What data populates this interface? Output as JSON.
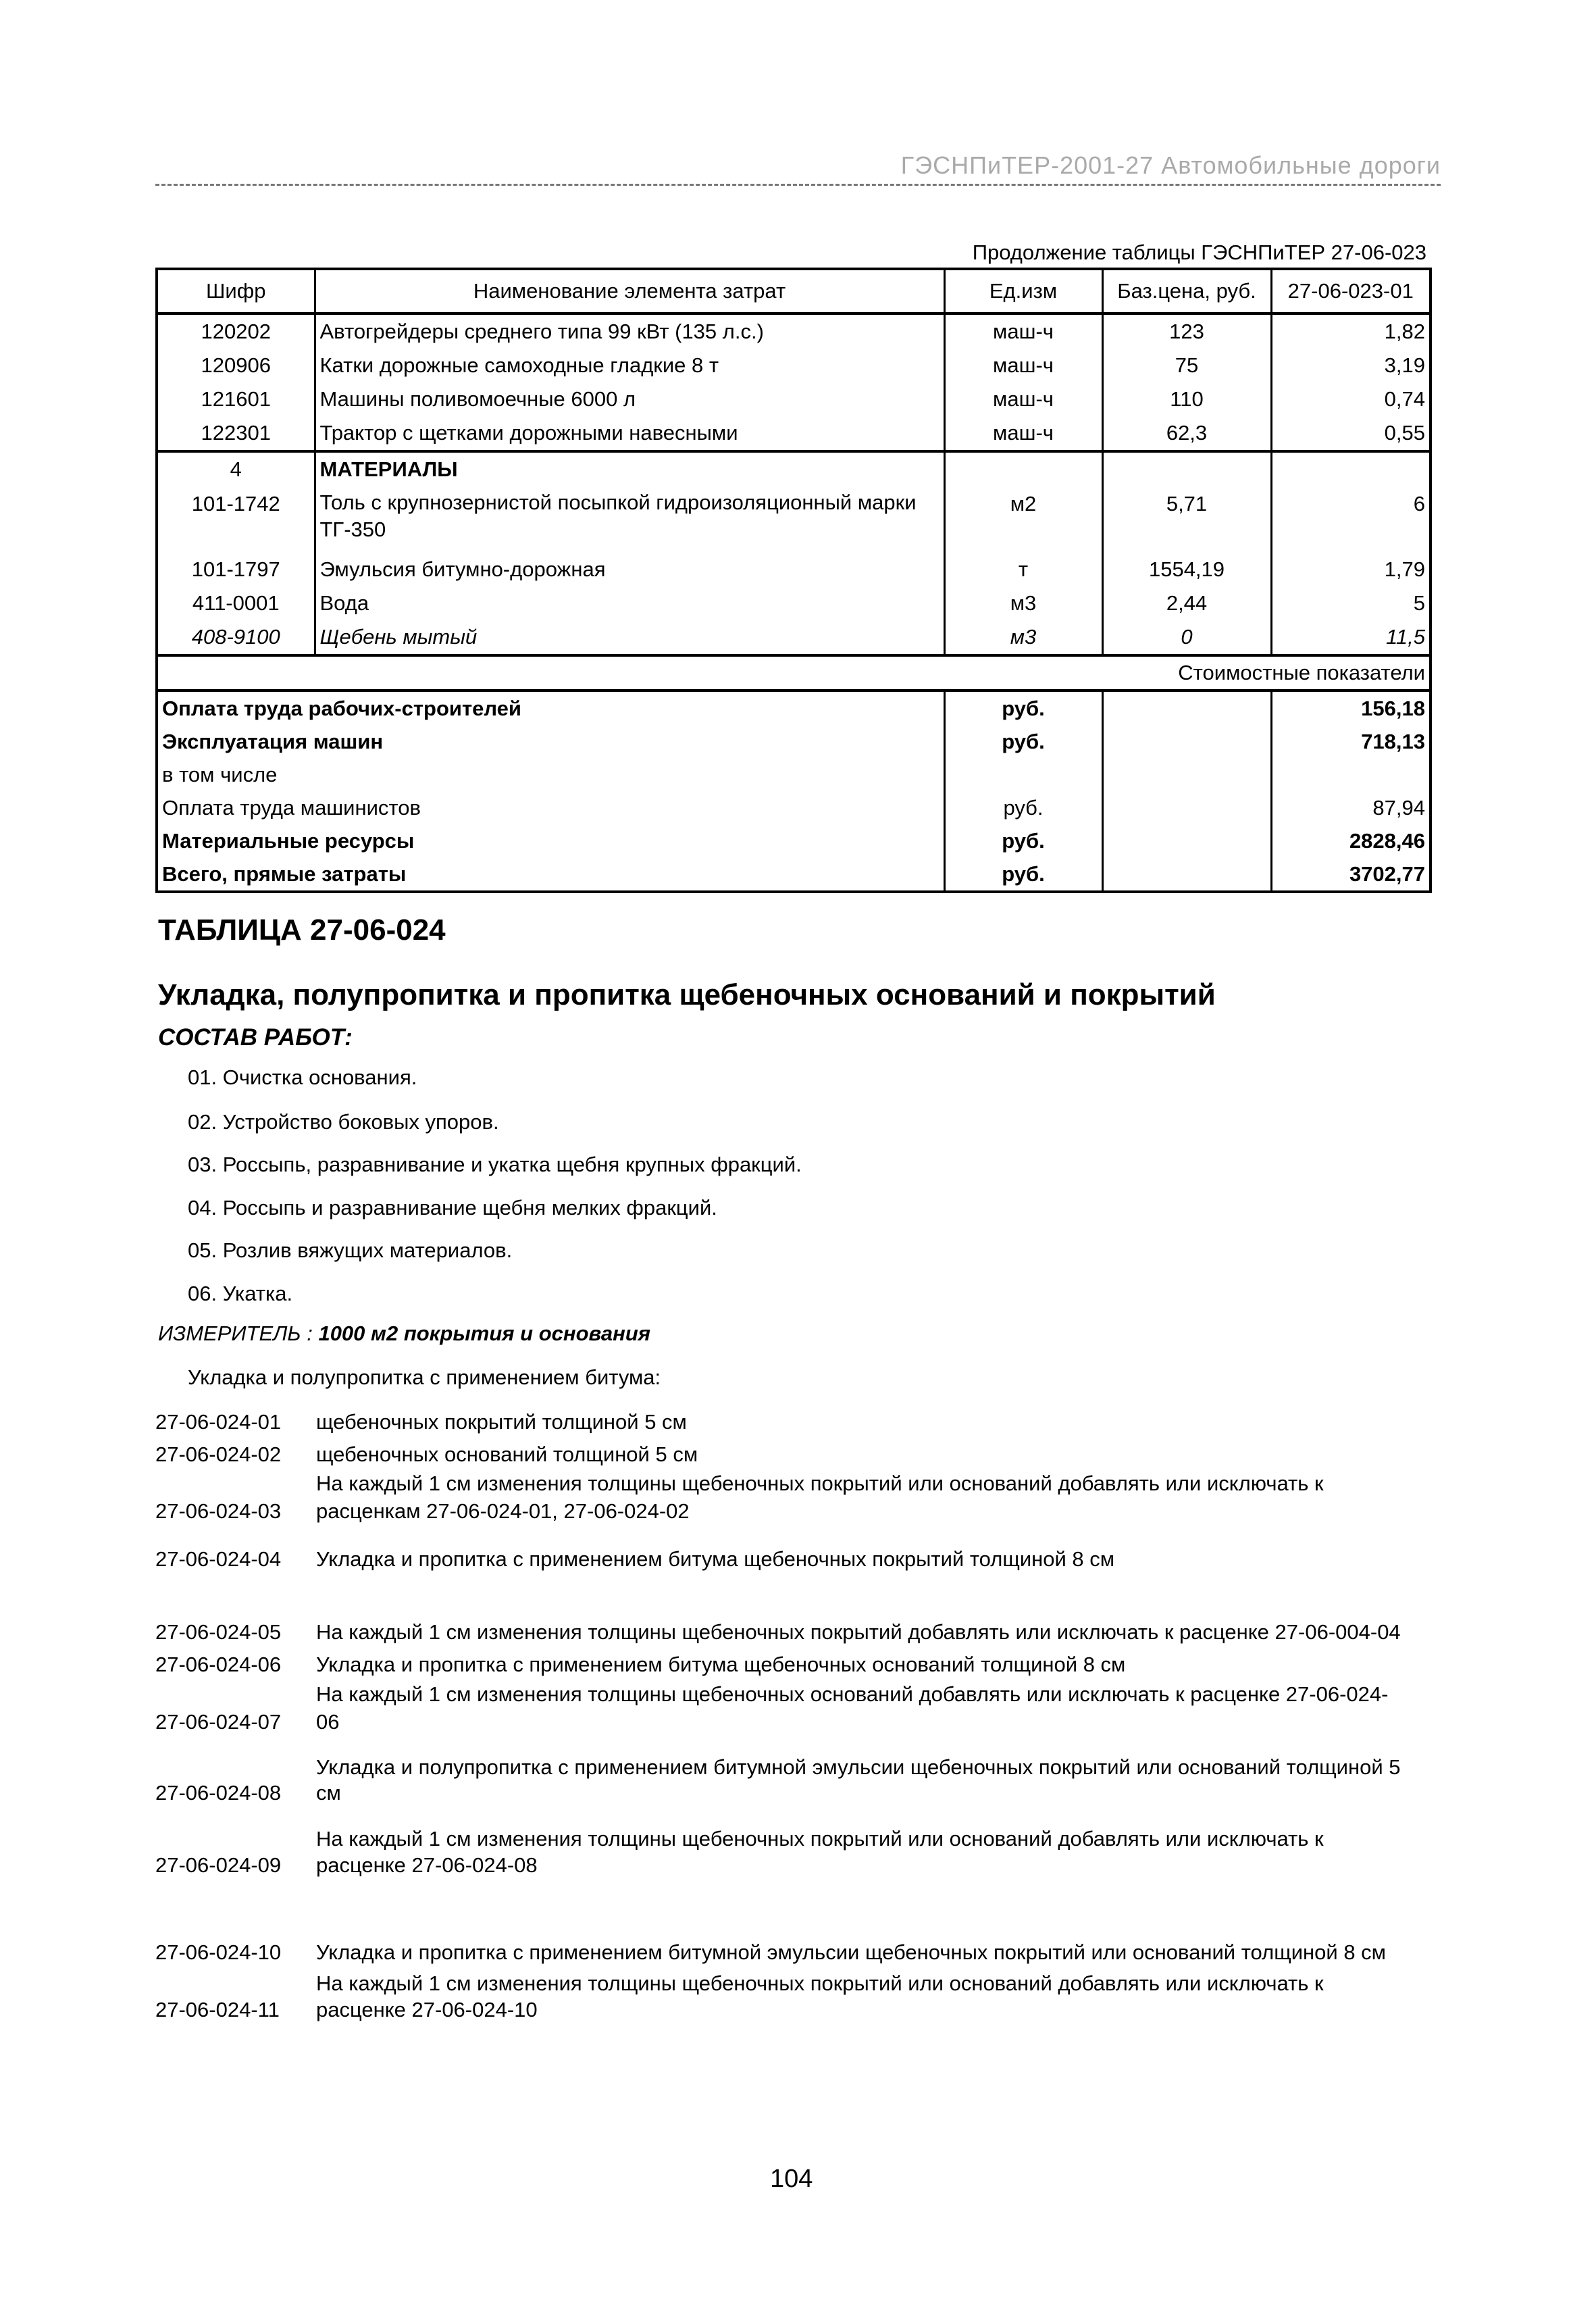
{
  "running_header": "ГЭСНПиТЕР-2001-27 Автомобильные дороги",
  "continuation": "Продолжение таблицы ГЭСНПиТЕР 27-06-023",
  "table": {
    "headers": [
      "Шифр",
      "Наименование элемента затрат",
      "Ед.изм",
      "Баз.цена, руб.",
      "27-06-023-01"
    ],
    "machines": [
      {
        "code": "120202",
        "name": "Автогрейдеры среднего типа 99 кВт (135 л.с.)",
        "unit": "маш-ч",
        "price": "123",
        "value": "1,82"
      },
      {
        "code": "120906",
        "name": "Катки дорожные самоходные гладкие 8 т",
        "unit": "маш-ч",
        "price": "75",
        "value": "3,19"
      },
      {
        "code": "121601",
        "name": "Машины поливомоечные 6000 л",
        "unit": "маш-ч",
        "price": "110",
        "value": "0,74"
      },
      {
        "code": "122301",
        "name": "Трактор с щетками дорожными навесными",
        "unit": "маш-ч",
        "price": "62,3",
        "value": "0,55"
      }
    ],
    "materials_section": {
      "code": "4",
      "name": "МАТЕРИАЛЫ"
    },
    "materials": [
      {
        "code": "101-1742",
        "name": "Толь с крупнозернистой посыпкой гидроизоляционный марки ТГ-350",
        "unit": "м2",
        "price": "5,71",
        "value": "6"
      },
      {
        "code": "101-1797",
        "name": "Эмульсия битумно-дорожная",
        "unit": "т",
        "price": "1554,19",
        "value": "1,79"
      },
      {
        "code": "411-0001",
        "name": "Вода",
        "unit": "м3",
        "price": "2,44",
        "value": "5"
      },
      {
        "code": "408-9100",
        "name": "Щебень мытый",
        "unit": "м3",
        "price": "0",
        "value": "11,5"
      }
    ],
    "cost_section": "Стоимостные показатели",
    "costs": [
      {
        "name": "Оплата труда рабочих-строителей",
        "unit": "руб.",
        "value": "156,18",
        "bold": true
      },
      {
        "name": "Эксплуатация машин",
        "unit": "руб.",
        "value": "718,13",
        "bold": true
      },
      {
        "name": "в том числе",
        "unit": "",
        "value": "",
        "bold": false
      },
      {
        "name": "Оплата труда машинистов",
        "unit": "руб.",
        "value": "87,94",
        "bold": false
      },
      {
        "name": "Материальные ресурсы",
        "unit": "руб.",
        "value": "2828,46",
        "bold": true
      },
      {
        "name": "Всего, прямые затраты",
        "unit": "руб.",
        "value": "3702,77",
        "bold": true
      }
    ]
  },
  "table_name": "ТАБЛИЦА 27-06-024",
  "table_title": "Укладка, полупропитка и пропитка щебеночных оснований и покрытий",
  "composition_label": "СОСТАВ РАБОТ:",
  "works": [
    "01. Очистка основания.",
    "02. Устройство боковых упоров.",
    "03. Россыпь, разравнивание и укатка щебня крупных фракций.",
    "04. Россыпь и разравнивание щебня мелких фракций.",
    "05. Розлив вяжущих материалов.",
    "06. Укатка."
  ],
  "meter_label": "ИЗМЕРИТЕЛЬ :",
  "meter_value": "1000 м2 покрытия и основания",
  "intro": "Укладка и полупропитка с применением битума:",
  "rates": [
    {
      "code": "27-06-024-01",
      "lines": [
        "щебеночных покрытий толщиной 5 см"
      ]
    },
    {
      "code": "27-06-024-02",
      "lines": [
        "щебеночных оснований толщиной 5 см"
      ]
    },
    {
      "code": "27-06-024-03",
      "lines": [
        "На каждый 1 см изменения толщины щебеночных покрытий или оснований добавлять или исключать к",
        "расценкам 27-06-024-01, 27-06-024-02"
      ]
    },
    {
      "code": "27-06-024-04",
      "lines": [
        "Укладка и пропитка с применением битума щебеночных покрытий толщиной 8 см"
      ]
    },
    {
      "code": "27-06-024-05",
      "lines": [
        "На каждый 1 см изменения толщины щебеночных покрытий добавлять или исключать к расценке 27-06-004-04"
      ]
    },
    {
      "code": "27-06-024-06",
      "lines": [
        "Укладка и пропитка с применением битума щебеночных оснований толщиной 8 см"
      ]
    },
    {
      "code": "27-06-024-07",
      "lines": [
        "На каждый 1 см изменения толщины щебеночных оснований добавлять или исключать к расценке 27-06-024-",
        "06"
      ]
    },
    {
      "code": "27-06-024-08",
      "lines": [
        "Укладка и полупропитка с применением битумной эмульсии щебеночных покрытий или оснований толщиной 5",
        "см"
      ]
    },
    {
      "code": "27-06-024-09",
      "lines": [
        "На каждый 1 см изменения толщины щебеночных покрытий или оснований добавлять или исключать к",
        "расценке 27-06-024-08"
      ]
    },
    {
      "code": "27-06-024-10",
      "lines": [
        "Укладка и пропитка с применением битумной эмульсии щебеночных покрытий или оснований толщиной 8 см"
      ]
    },
    {
      "code": "27-06-024-11",
      "lines": [
        "На каждый 1 см изменения толщины щебеночных покрытий или оснований добавлять или исключать к",
        "расценке 27-06-024-10"
      ]
    }
  ],
  "page_number": "104"
}
